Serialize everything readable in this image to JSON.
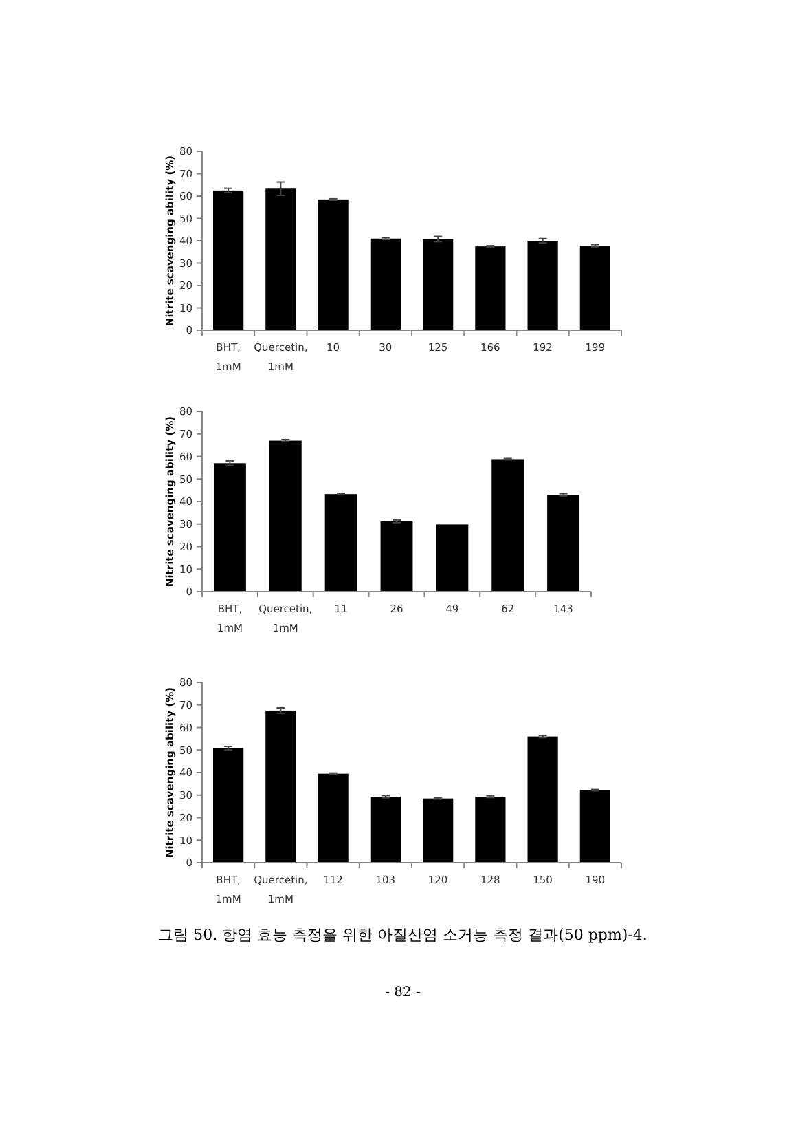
{
  "chart_data": [
    {
      "type": "bar",
      "ylabel": "Nitrite scavenging ability (%)",
      "categories": [
        "BHT, 1mM",
        "Quercetin, 1mM",
        "10",
        "30",
        "125",
        "166",
        "192",
        "199"
      ],
      "values": [
        62.5,
        63.3,
        58.5,
        41,
        40.8,
        37.5,
        40,
        37.8
      ],
      "errors": [
        1,
        3,
        0.3,
        0.4,
        1.2,
        0.3,
        1,
        0.5
      ],
      "color": "#000000",
      "ylim": [
        0,
        80
      ],
      "yticks": [
        0,
        10,
        20,
        30,
        40,
        50,
        60,
        70,
        80
      ]
    },
    {
      "type": "bar",
      "ylabel": "Nitrite scavenging ability (%)",
      "categories": [
        "BHT, 1mM",
        "Quercetin, 1mM",
        "11",
        "26",
        "49",
        "62",
        "143"
      ],
      "values": [
        57,
        67,
        43.3,
        31.2,
        29.8,
        58.8,
        43
      ],
      "errors": [
        1,
        0.5,
        0.3,
        0.6,
        null,
        0.3,
        0.5
      ],
      "color": "#000000",
      "ylim": [
        0,
        80
      ],
      "yticks": [
        0,
        10,
        20,
        30,
        40,
        50,
        60,
        70,
        80
      ]
    },
    {
      "type": "bar",
      "ylabel": "Nitrite scavenging ability (%)",
      "categories": [
        "BHT, 1mM",
        "Quercetin, 1mM",
        "112",
        "103",
        "120",
        "128",
        "150",
        "190"
      ],
      "values": [
        50.8,
        67.5,
        39.5,
        29.3,
        28.5,
        29.3,
        56,
        32.2
      ],
      "errors": [
        0.8,
        1.2,
        0.3,
        0.5,
        0.3,
        0.4,
        0.5,
        0.3
      ],
      "color": "#000000",
      "ylim": [
        0,
        80
      ],
      "yticks": [
        0,
        10,
        20,
        30,
        40,
        50,
        60,
        70,
        80
      ],
      "annotations": [
        "그림 50. 항염 효능 측정을 위한 아질산염 소거능 측정 결과(50 ppm)-4.",
        "- 82 -"
      ]
    }
  ]
}
